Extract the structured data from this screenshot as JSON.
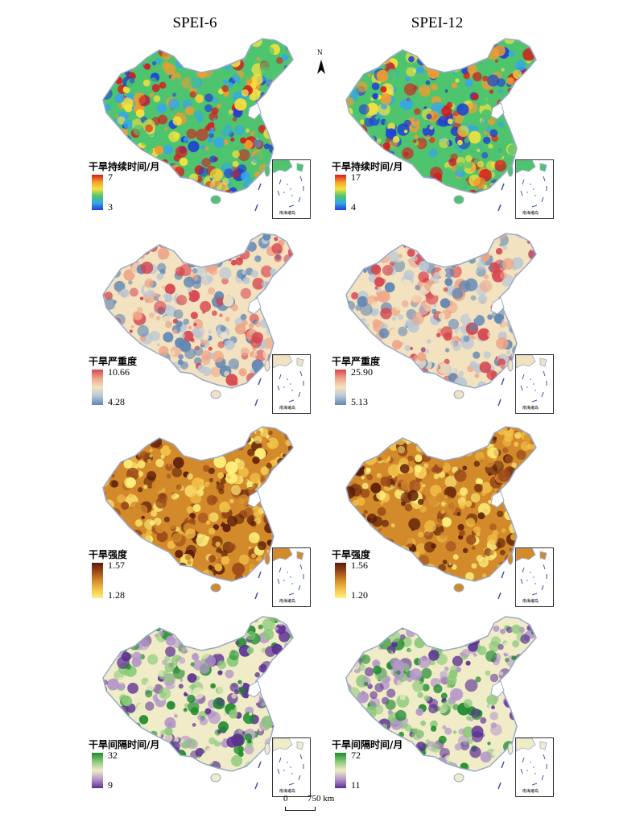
{
  "columns": [
    "SPEI-6",
    "SPEI-12"
  ],
  "north_label": "N",
  "inset_label": "南海诸岛",
  "scale": {
    "zero": "0",
    "distance": "750 km"
  },
  "rows": [
    {
      "metric": "duration",
      "panels": [
        {
          "legend_title": "干旱持续时间/月",
          "max": "7",
          "min": "3"
        },
        {
          "legend_title": "干旱持续时间/月",
          "max": "17",
          "min": "4"
        }
      ],
      "colors": [
        "#d7191c",
        "#f59b2d",
        "#f6e23f",
        "#4fc46f",
        "#35a7e8",
        "#1f3fd4"
      ]
    },
    {
      "metric": "severity",
      "panels": [
        {
          "legend_title": "干旱严重度",
          "max": "10.66",
          "min": "4.28"
        },
        {
          "legend_title": "干旱严重度",
          "max": "25.90",
          "min": "5.13"
        }
      ],
      "colors": [
        "#d6454f",
        "#eea588",
        "#f3e2c0",
        "#b9c7d5",
        "#5f86b4"
      ]
    },
    {
      "metric": "intensity",
      "panels": [
        {
          "legend_title": "干旱强度",
          "max": "1.57",
          "min": "1.28"
        },
        {
          "legend_title": "干旱强度",
          "max": "1.56",
          "min": "1.20"
        }
      ],
      "colors": [
        "#5a1a08",
        "#9b4a1a",
        "#d28a2a",
        "#f3c24a",
        "#fff17d"
      ]
    },
    {
      "metric": "interval",
      "panels": [
        {
          "legend_title": "干旱间隔时间/月",
          "max": "32",
          "min": "9"
        },
        {
          "legend_title": "干旱间隔时间/月",
          "max": "72",
          "min": "11"
        }
      ],
      "colors": [
        "#1e8a2e",
        "#8bc97a",
        "#f1ecc8",
        "#b497c9",
        "#5b2f93"
      ]
    }
  ]
}
